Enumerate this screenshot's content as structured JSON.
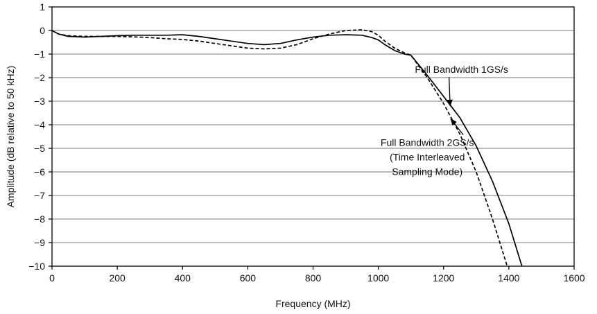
{
  "chart_data": {
    "type": "line",
    "title": "",
    "xlabel": "Frequency (MHz)",
    "ylabel": "Amplitude (dB relative to 50 kHz)",
    "xlim": [
      0,
      1600
    ],
    "ylim": [
      -10,
      1
    ],
    "grid": "horizontal",
    "x_ticks": [
      0,
      200,
      400,
      600,
      800,
      1000,
      1200,
      1400,
      1600
    ],
    "y_ticks": [
      1,
      0,
      -1,
      -2,
      -3,
      -4,
      -5,
      -6,
      -7,
      -8,
      -9,
      -10
    ],
    "series": [
      {
        "name": "Full Bandwidth 1GS/s",
        "style": "solid",
        "color": "#000000",
        "x": [
          0,
          20,
          50,
          100,
          150,
          200,
          250,
          300,
          350,
          400,
          450,
          500,
          550,
          600,
          650,
          700,
          750,
          800,
          850,
          900,
          950,
          980,
          1000,
          1020,
          1050,
          1080,
          1100,
          1150,
          1200,
          1250,
          1300,
          1350,
          1400,
          1440
        ],
        "y": [
          0,
          -0.15,
          -0.25,
          -0.28,
          -0.25,
          -0.22,
          -0.2,
          -0.2,
          -0.2,
          -0.18,
          -0.25,
          -0.35,
          -0.45,
          -0.55,
          -0.6,
          -0.55,
          -0.4,
          -0.28,
          -0.2,
          -0.18,
          -0.2,
          -0.3,
          -0.4,
          -0.6,
          -0.85,
          -1.0,
          -1.05,
          -1.9,
          -2.8,
          -3.7,
          -4.9,
          -6.4,
          -8.2,
          -10
        ]
      },
      {
        "name": "Full Bandwidth 2GS/s (Time Interleaved Sampling Mode)",
        "style": "dashed",
        "color": "#000000",
        "x": [
          0,
          20,
          50,
          100,
          150,
          200,
          250,
          300,
          350,
          400,
          450,
          500,
          550,
          600,
          650,
          700,
          750,
          800,
          850,
          900,
          950,
          980,
          1000,
          1020,
          1050,
          1080,
          1100,
          1150,
          1200,
          1250,
          1300,
          1350,
          1395
        ],
        "y": [
          0,
          -0.15,
          -0.22,
          -0.25,
          -0.25,
          -0.25,
          -0.27,
          -0.3,
          -0.35,
          -0.38,
          -0.45,
          -0.55,
          -0.65,
          -0.75,
          -0.78,
          -0.75,
          -0.6,
          -0.35,
          -0.15,
          0,
          0.03,
          -0.05,
          -0.2,
          -0.45,
          -0.75,
          -0.95,
          -1.05,
          -2.0,
          -3.1,
          -4.4,
          -6.0,
          -8.0,
          -10
        ]
      }
    ],
    "annotations": [
      {
        "lines": [
          "Full Bandwidth 1GS/s"
        ],
        "anchor_x": 1255,
        "anchor_y": -1.8,
        "arrow_to_x": 1220,
        "arrow_to_y": -3.2
      },
      {
        "lines": [
          "Full Bandwidth 2GS/s",
          "(Time Interleaved",
          "Sampling Mode)"
        ],
        "anchor_x": 1150,
        "anchor_y": -4.9,
        "arrow_to_x": 1222,
        "arrow_to_y": -3.75
      }
    ]
  }
}
